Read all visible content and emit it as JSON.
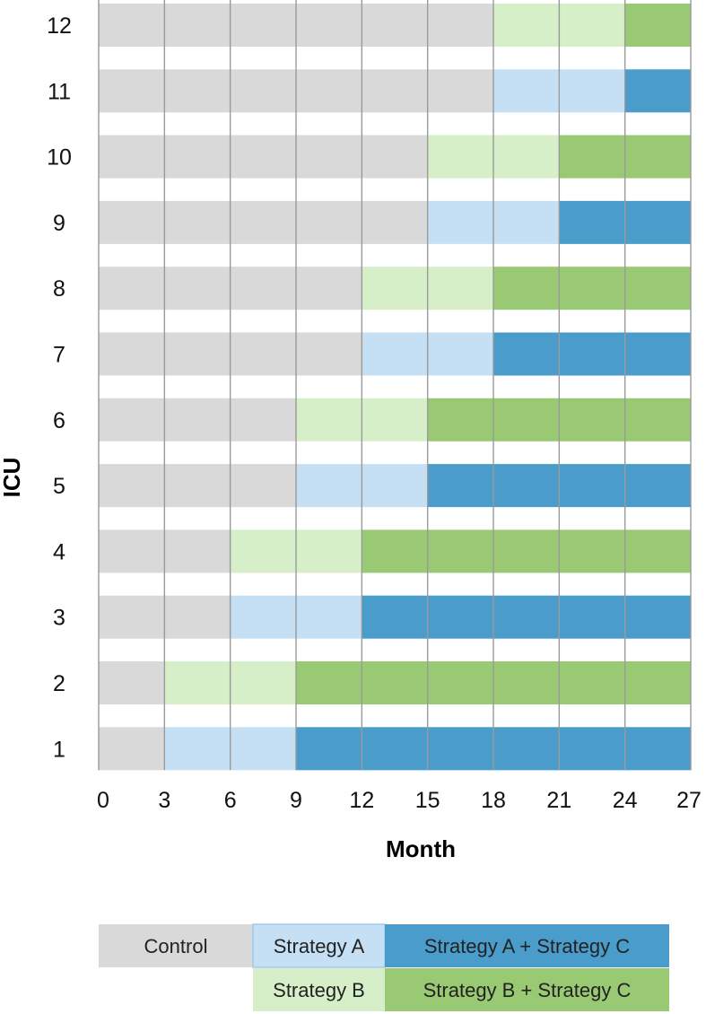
{
  "chart_data": {
    "type": "stepped-wedge timeline",
    "xlabel": "Month",
    "ylabel": "ICU",
    "x_ticks": [
      0,
      3,
      6,
      9,
      12,
      15,
      18,
      21,
      24,
      27
    ],
    "xlim": [
      0,
      27
    ],
    "rows": [
      {
        "icu": "1",
        "segments": [
          {
            "phase": "Control",
            "start": 0,
            "end": 3
          },
          {
            "phase": "Strategy A",
            "start": 3,
            "end": 9
          },
          {
            "phase": "Strategy A + Strategy C",
            "start": 9,
            "end": 27
          }
        ]
      },
      {
        "icu": "2",
        "segments": [
          {
            "phase": "Control",
            "start": 0,
            "end": 3
          },
          {
            "phase": "Strategy B",
            "start": 3,
            "end": 9
          },
          {
            "phase": "Strategy B + Strategy C",
            "start": 9,
            "end": 27
          }
        ]
      },
      {
        "icu": "3",
        "segments": [
          {
            "phase": "Control",
            "start": 0,
            "end": 6
          },
          {
            "phase": "Strategy A",
            "start": 6,
            "end": 12
          },
          {
            "phase": "Strategy A + Strategy C",
            "start": 12,
            "end": 27
          }
        ]
      },
      {
        "icu": "4",
        "segments": [
          {
            "phase": "Control",
            "start": 0,
            "end": 6
          },
          {
            "phase": "Strategy B",
            "start": 6,
            "end": 12
          },
          {
            "phase": "Strategy B + Strategy C",
            "start": 12,
            "end": 27
          }
        ]
      },
      {
        "icu": "5",
        "segments": [
          {
            "phase": "Control",
            "start": 0,
            "end": 9
          },
          {
            "phase": "Strategy A",
            "start": 9,
            "end": 15
          },
          {
            "phase": "Strategy A + Strategy C",
            "start": 15,
            "end": 27
          }
        ]
      },
      {
        "icu": "6",
        "segments": [
          {
            "phase": "Control",
            "start": 0,
            "end": 9
          },
          {
            "phase": "Strategy B",
            "start": 9,
            "end": 15
          },
          {
            "phase": "Strategy B + Strategy C",
            "start": 15,
            "end": 27
          }
        ]
      },
      {
        "icu": "7",
        "segments": [
          {
            "phase": "Control",
            "start": 0,
            "end": 12
          },
          {
            "phase": "Strategy A",
            "start": 12,
            "end": 18
          },
          {
            "phase": "Strategy A + Strategy C",
            "start": 18,
            "end": 27
          }
        ]
      },
      {
        "icu": "8",
        "segments": [
          {
            "phase": "Control",
            "start": 0,
            "end": 12
          },
          {
            "phase": "Strategy B",
            "start": 12,
            "end": 18
          },
          {
            "phase": "Strategy B + Strategy C",
            "start": 18,
            "end": 27
          }
        ]
      },
      {
        "icu": "9",
        "segments": [
          {
            "phase": "Control",
            "start": 0,
            "end": 15
          },
          {
            "phase": "Strategy A",
            "start": 15,
            "end": 21
          },
          {
            "phase": "Strategy A + Strategy C",
            "start": 21,
            "end": 27
          }
        ]
      },
      {
        "icu": "10",
        "segments": [
          {
            "phase": "Control",
            "start": 0,
            "end": 15
          },
          {
            "phase": "Strategy B",
            "start": 15,
            "end": 21
          },
          {
            "phase": "Strategy B + Strategy C",
            "start": 21,
            "end": 27
          }
        ]
      },
      {
        "icu": "11",
        "segments": [
          {
            "phase": "Control",
            "start": 0,
            "end": 18
          },
          {
            "phase": "Strategy A",
            "start": 18,
            "end": 24
          },
          {
            "phase": "Strategy A + Strategy C",
            "start": 24,
            "end": 27
          }
        ]
      },
      {
        "icu": "12",
        "segments": [
          {
            "phase": "Control",
            "start": 0,
            "end": 18
          },
          {
            "phase": "Strategy B",
            "start": 18,
            "end": 24
          },
          {
            "phase": "Strategy B + Strategy C",
            "start": 24,
            "end": 27
          }
        ]
      }
    ],
    "legend": [
      {
        "label": "Control",
        "color": "#d9d9d9"
      },
      {
        "label": "Strategy A",
        "color": "#c5e0f4"
      },
      {
        "label": "Strategy A + Strategy C",
        "color": "#4a9ccb"
      },
      {
        "label": "Strategy B",
        "color": "#d6efc8"
      },
      {
        "label": "Strategy B + Strategy C",
        "color": "#9ac974"
      }
    ],
    "legend_placement": "bottom",
    "grid": "vertical lines at every x tick"
  }
}
